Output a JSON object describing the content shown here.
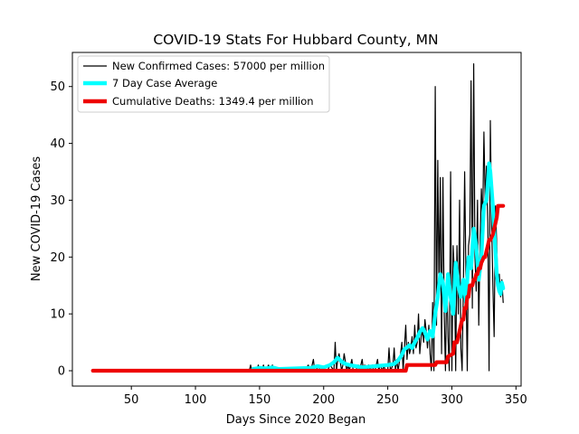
{
  "chart_data": {
    "type": "line",
    "title": "COVID-19 Stats For Hubbard County, MN",
    "xlabel": "Days Since 2020 Began",
    "ylabel": "New COVID-19 Cases",
    "xlim": [
      4,
      354
    ],
    "ylim": [
      -2.7,
      56
    ],
    "xticks": [
      50,
      100,
      150,
      200,
      250,
      300,
      350
    ],
    "yticks": [
      0,
      10,
      20,
      30,
      40,
      50
    ],
    "grid": false,
    "legend_position": "top-left",
    "series": [
      {
        "name": "New Confirmed Cases: 57000 per million",
        "color": "#000000",
        "style": "thin-line",
        "x": [
          20,
          142,
          143,
          144,
          148,
          149,
          150,
          152,
          153,
          154,
          155,
          157,
          158,
          160,
          161,
          162,
          165,
          170,
          175,
          180,
          185,
          188,
          189,
          190,
          192,
          193,
          194,
          196,
          197,
          200,
          203,
          205,
          208,
          209,
          210,
          211,
          212,
          214,
          215,
          216,
          218,
          219,
          220,
          222,
          223,
          225,
          227,
          228,
          230,
          231,
          232,
          234,
          235,
          236,
          238,
          239,
          240,
          242,
          243,
          244,
          246,
          247,
          248,
          250,
          251,
          252,
          254,
          255,
          256,
          257,
          258,
          260,
          261,
          262,
          263,
          264,
          265,
          266,
          267,
          268,
          269,
          270,
          271,
          272,
          273,
          274,
          275,
          276,
          277,
          278,
          279,
          280,
          281,
          282,
          283,
          284,
          285,
          286,
          287,
          288,
          289,
          290,
          291,
          292,
          293,
          294,
          295,
          296,
          297,
          298,
          299,
          300,
          301,
          302,
          303,
          304,
          305,
          306,
          307,
          308,
          309,
          310,
          311,
          312,
          313,
          314,
          315,
          316,
          317,
          318,
          319,
          320,
          321,
          322,
          323,
          324,
          325,
          326,
          327,
          328,
          329,
          330,
          331,
          332,
          333,
          334,
          335,
          336,
          337,
          338,
          339,
          340
        ],
        "y": [
          0,
          0,
          1,
          0,
          0,
          1,
          0,
          0,
          1,
          0,
          0,
          1,
          0,
          1,
          0,
          0,
          0,
          0,
          0,
          0,
          0,
          1,
          0,
          0,
          2,
          0,
          0,
          1,
          0,
          0,
          0,
          1,
          0,
          5,
          0,
          2,
          3,
          0,
          1,
          3,
          0,
          1,
          0,
          2,
          0,
          0,
          1,
          0,
          2,
          0,
          1,
          0,
          1,
          0,
          1,
          0,
          0,
          2,
          0,
          1,
          0,
          1,
          0,
          0,
          4,
          0,
          1,
          4,
          0,
          2,
          0,
          3,
          5,
          0,
          4,
          8,
          2,
          5,
          3,
          4,
          6,
          3,
          8,
          4,
          5,
          10,
          3,
          6,
          7,
          5,
          9,
          7,
          4,
          8,
          3,
          0,
          12,
          0,
          50,
          8,
          37,
          14,
          34,
          3,
          34,
          10,
          0,
          17,
          6,
          0,
          35,
          0,
          22,
          17,
          0,
          22,
          10,
          30,
          4,
          0,
          15,
          35,
          16,
          0,
          22,
          24,
          51,
          11,
          54,
          20,
          14,
          30,
          8,
          23,
          32,
          26,
          42,
          30,
          36,
          26,
          0,
          44,
          26,
          15,
          6,
          29,
          22,
          14,
          17,
          13,
          16,
          12
        ]
      },
      {
        "name": "7 Day Case Average",
        "color": "#00ffff",
        "style": "thick-line",
        "x": [
          145,
          150,
          155,
          160,
          165,
          190,
          195,
          200,
          205,
          208,
          211,
          214,
          217,
          220,
          225,
          230,
          240,
          250,
          255,
          258,
          261,
          263,
          265,
          267,
          269,
          271,
          273,
          275,
          277,
          279,
          281,
          283,
          285,
          287,
          289,
          291,
          293,
          295,
          297,
          299,
          301,
          303,
          305,
          307,
          309,
          311,
          313,
          315,
          317,
          319,
          321,
          323,
          325,
          327,
          328,
          329,
          330,
          331,
          332,
          333,
          334,
          335,
          336,
          337,
          338,
          339,
          340
        ],
        "y": [
          0.3,
          0.5,
          0.4,
          0.6,
          0.3,
          0.5,
          0.8,
          0.6,
          1.0,
          1.5,
          2.3,
          1.6,
          1.2,
          1.0,
          0.8,
          0.6,
          0.8,
          1.0,
          1.2,
          1.8,
          2.8,
          3.8,
          4.1,
          4.5,
          4.0,
          5.0,
          5.8,
          6.8,
          7.5,
          6.8,
          5.5,
          7.0,
          6.0,
          10.0,
          13.0,
          17.0,
          15.5,
          10.5,
          17.0,
          13.0,
          10.0,
          19.0,
          15.0,
          13.0,
          16.0,
          12.0,
          20.0,
          18.0,
          25.0,
          22.0,
          16.0,
          20.0,
          29.0,
          30.0,
          33.0,
          36.5,
          35.0,
          32.0,
          29.0,
          25.0,
          21.0,
          17.0,
          15.0,
          14.0,
          13.5,
          15.5,
          14.5
        ]
      },
      {
        "name": "Cumulative Deaths: 1349.4 per million",
        "color": "#ee0000",
        "style": "thick-line",
        "x": [
          20,
          100,
          200,
          264,
          265,
          287,
          288,
          296,
          297,
          301,
          302,
          304,
          305,
          307,
          308,
          309,
          310,
          311,
          312,
          313,
          314,
          316,
          317,
          318,
          319,
          320,
          321,
          322,
          323,
          325,
          326,
          327,
          328,
          329,
          330,
          331,
          332,
          333,
          334,
          335,
          336,
          337,
          338,
          339,
          340
        ],
        "y": [
          0,
          0,
          0,
          0,
          1,
          1,
          1.5,
          1.5,
          2.5,
          3,
          5,
          5,
          6,
          8,
          9,
          9,
          11,
          11,
          13,
          13,
          15,
          15,
          16,
          16,
          17,
          17,
          18,
          18,
          19,
          20,
          20,
          21,
          22,
          23,
          23,
          23.5,
          24,
          25,
          26,
          27,
          29,
          29,
          29,
          29,
          29
        ]
      }
    ]
  }
}
